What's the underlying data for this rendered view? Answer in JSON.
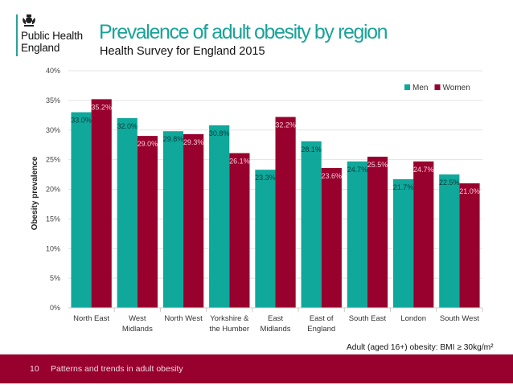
{
  "header": {
    "org_name_line1": "Public Health",
    "org_name_line2": "England",
    "title": "Prevalence of adult obesity by region",
    "subtitle": "Health Survey for England 2015"
  },
  "colors": {
    "men": "#0fa89b",
    "women": "#98002e",
    "title": "#1aa39a",
    "footer": "#98002e"
  },
  "chart_data": {
    "type": "bar",
    "title": "",
    "xlabel": "",
    "ylabel": "Obesity prevalence",
    "ylim": [
      0,
      40
    ],
    "yticks": [
      0,
      5,
      10,
      15,
      20,
      25,
      30,
      35,
      40
    ],
    "ytick_labels": [
      "0%",
      "5%",
      "10%",
      "15%",
      "20%",
      "25%",
      "30%",
      "35%",
      "40%"
    ],
    "grid": true,
    "legend_position": "top-right",
    "categories": [
      [
        "North East"
      ],
      [
        "West",
        "Midlands"
      ],
      [
        "North West"
      ],
      [
        "Yorkshire &",
        "the Humber"
      ],
      [
        "East",
        "Midlands"
      ],
      [
        "East of",
        "England"
      ],
      [
        "South East"
      ],
      [
        "London"
      ],
      [
        "South West"
      ]
    ],
    "series": [
      {
        "name": "Men",
        "values": [
          33.0,
          32.0,
          29.8,
          30.8,
          23.3,
          28.1,
          24.7,
          21.7,
          22.5
        ],
        "labels": [
          "33.0%",
          "32.0%",
          "29.8%",
          "30.8%",
          "23.3%",
          "28.1%",
          "24.7%",
          "21.7%",
          "22.5%"
        ]
      },
      {
        "name": "Women",
        "values": [
          35.2,
          29.0,
          29.3,
          26.1,
          32.2,
          23.6,
          25.5,
          24.7,
          21.0
        ],
        "labels": [
          "35.2%",
          "29.0%",
          "29.3%",
          "26.1%",
          "32.2%",
          "23.6%",
          "25.5%",
          "24.7%",
          "21.0%"
        ]
      }
    ]
  },
  "note": "Adult (aged 16+) obesity: BMI ≥ 30kg/m²",
  "footer": {
    "page_number": "10",
    "section_title": "Patterns and trends in adult obesity"
  }
}
